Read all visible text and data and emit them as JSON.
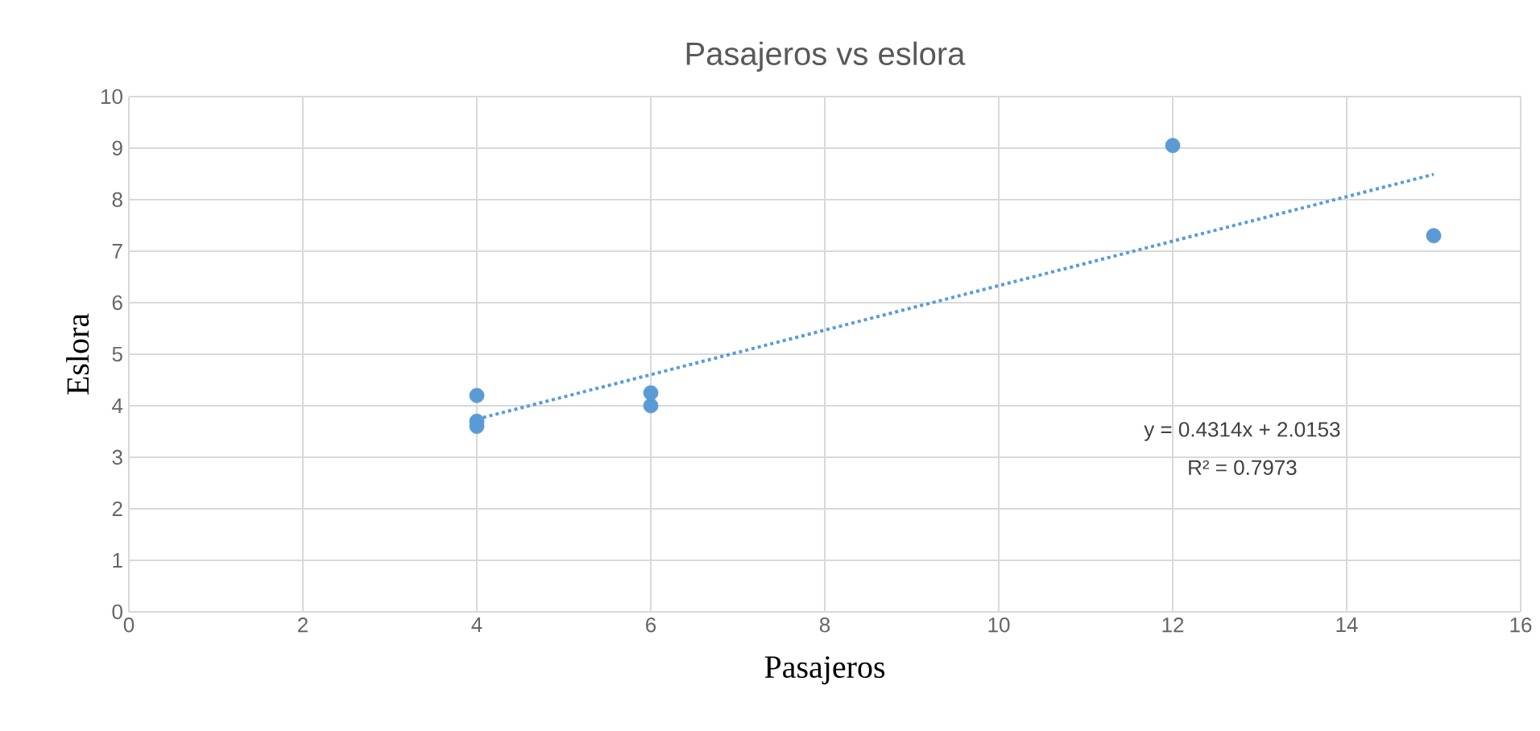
{
  "chart_data": {
    "type": "scatter",
    "title": "Pasajeros vs eslora",
    "xlabel": "Pasajeros",
    "ylabel": "Eslora",
    "series": [
      {
        "color": "#5b9bd5",
        "marker": "circle",
        "x": [
          4,
          4,
          4,
          6,
          6,
          12,
          15
        ],
        "values": [
          4.2,
          3.7,
          3.6,
          4.25,
          4.0,
          9.05,
          7.3
        ]
      },
      {
        "type": "line",
        "color": "#5b9bd5",
        "line_style": "dotted",
        "marker": "none",
        "x": [
          4,
          15
        ],
        "values": [
          3.74,
          8.49
        ]
      }
    ],
    "xlim": [
      0,
      16
    ],
    "xticks": [
      0,
      2,
      4,
      6,
      8,
      10,
      12,
      14,
      16
    ],
    "ylim": [
      0,
      10
    ],
    "yticks": [
      0,
      1,
      2,
      3,
      4,
      5,
      6,
      7,
      8,
      9,
      10
    ],
    "grid": true,
    "annotations": [
      "y = 0.4314x + 2.0153",
      "R² = 0.7973"
    ]
  }
}
